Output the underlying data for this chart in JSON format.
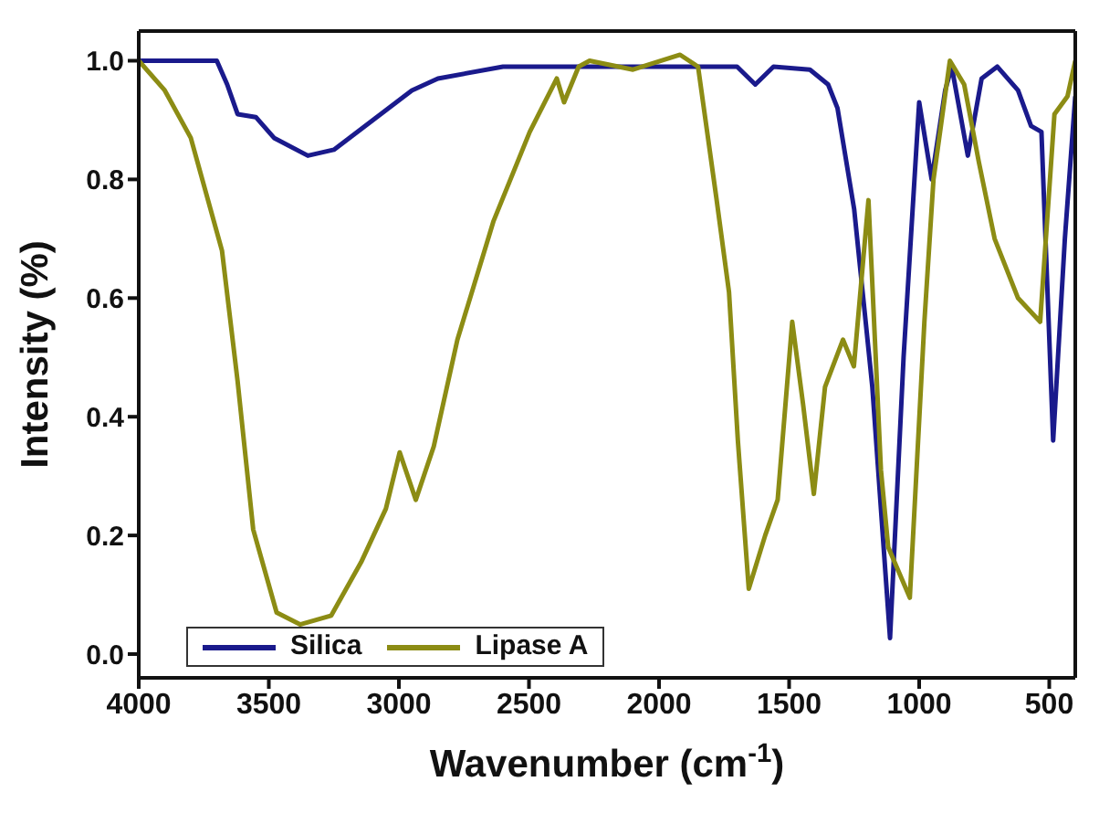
{
  "chart_data": {
    "type": "line",
    "xlabel": "Wavenumber (cm$^{-1}$)",
    "ylabel": "Intensity (%)",
    "xlim": [
      4000,
      400
    ],
    "xticks": [
      4000,
      3500,
      3000,
      2500,
      2000,
      1500,
      1000,
      500
    ],
    "ylim": [
      -0.04,
      1.05
    ],
    "yticks": [
      {
        "value": 0,
        "label": "0.0"
      },
      {
        "value": 0.2,
        "label": "0.2"
      },
      {
        "value": 0.4,
        "label": "0.4"
      },
      {
        "value": 0.6,
        "label": "0.6"
      },
      {
        "value": 0.8,
        "label": "0.8"
      },
      {
        "value": 1,
        "label": "1.0"
      }
    ],
    "grid": false,
    "legend": "bottom left",
    "marker": "none",
    "line_style": "solid",
    "series": [
      {
        "name": "Silica",
        "color": "#1a1a8c",
        "x": [
          4000,
          3700,
          3660,
          3620,
          3550,
          3480,
          3350,
          3250,
          3100,
          2950,
          2850,
          2600,
          2000,
          1700,
          1630,
          1560,
          1420,
          1350,
          1314,
          1250,
          1180,
          1112,
          1060,
          1000,
          952,
          900,
          875,
          813,
          760,
          700,
          620,
          570,
          530,
          485,
          440,
          400
        ],
        "values": [
          1.0,
          1.0,
          0.96,
          0.91,
          0.905,
          0.87,
          0.84,
          0.85,
          0.9,
          0.95,
          0.97,
          0.99,
          0.99,
          0.99,
          0.96,
          0.99,
          0.985,
          0.96,
          0.92,
          0.75,
          0.45,
          0.027,
          0.5,
          0.93,
          0.8,
          0.95,
          0.99,
          0.84,
          0.97,
          0.99,
          0.95,
          0.89,
          0.88,
          0.36,
          0.7,
          0.94
        ]
      },
      {
        "name": "Lipase A",
        "color": "#8c8c14",
        "x": [
          4000,
          3900,
          3800,
          3680,
          3620,
          3560,
          3470,
          3380,
          3260,
          3145,
          3050,
          2997,
          2935,
          2866,
          2775,
          2636,
          2497,
          2393,
          2365,
          2309,
          2267,
          2100,
          1919,
          1850,
          1780,
          1731,
          1697,
          1655,
          1592,
          1544,
          1488,
          1446,
          1405,
          1362,
          1293,
          1251,
          1195,
          1147,
          1119,
          1036,
          980,
          945,
          882,
          827,
          771,
          710,
          620,
          535,
          480,
          430,
          400
        ],
        "values": [
          1.0,
          0.95,
          0.87,
          0.68,
          0.46,
          0.21,
          0.07,
          0.05,
          0.065,
          0.155,
          0.245,
          0.34,
          0.26,
          0.35,
          0.53,
          0.73,
          0.88,
          0.97,
          0.93,
          0.99,
          1.0,
          0.985,
          1.01,
          0.99,
          0.77,
          0.61,
          0.36,
          0.11,
          0.2,
          0.26,
          0.56,
          0.42,
          0.27,
          0.45,
          0.53,
          0.485,
          0.765,
          0.31,
          0.18,
          0.095,
          0.56,
          0.8,
          1.0,
          0.96,
          0.83,
          0.7,
          0.6,
          0.56,
          0.91,
          0.94,
          1.0
        ]
      }
    ]
  }
}
